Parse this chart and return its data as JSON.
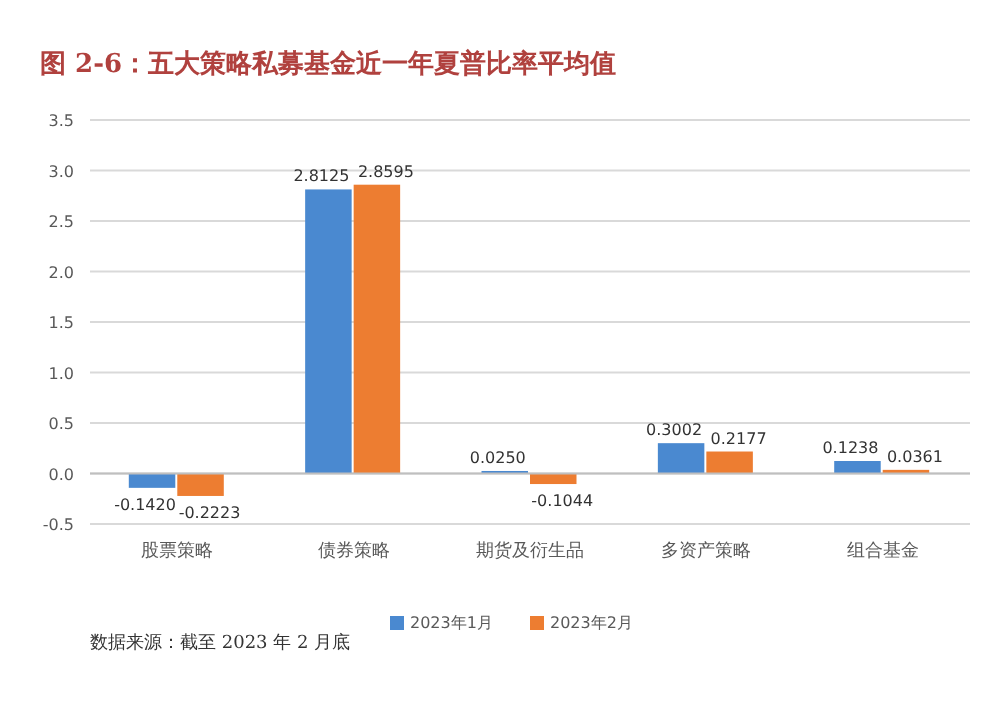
{
  "chart_data": {
    "type": "bar",
    "title": "图 2-6：五大策略私募基金近一年夏普比率平均值",
    "categories": [
      "股票策略",
      "债券策略",
      "期货及衍生品",
      "多资产策略",
      "组合基金"
    ],
    "series": [
      {
        "name": "2023年1月",
        "color": "#4a89d0",
        "values": [
          -0.142,
          2.8125,
          0.025,
          0.3002,
          0.1238
        ],
        "value_labels": [
          "-0.1420",
          "2.8125",
          "0.0250",
          "0.3002",
          "0.1238"
        ]
      },
      {
        "name": "2023年2月",
        "color": "#ed7d31",
        "values": [
          -0.2223,
          2.8595,
          -0.1044,
          0.2177,
          0.0361
        ],
        "value_labels": [
          "-0.2223",
          "2.8595",
          "-0.1044",
          "0.2177",
          "0.0361"
        ]
      }
    ],
    "ylim": [
      -0.5,
      3.5
    ],
    "yticks": [
      {
        "value": -0.5,
        "label": "-0.5"
      },
      {
        "value": 0,
        "label": "0.0"
      },
      {
        "value": 0.5,
        "label": "0.5"
      },
      {
        "value": 1,
        "label": "1.0"
      },
      {
        "value": 1.5,
        "label": "1.5"
      },
      {
        "value": 2,
        "label": "2.0"
      },
      {
        "value": 2.5,
        "label": "2.5"
      },
      {
        "value": 3,
        "label": "3.0"
      },
      {
        "value": 3.5,
        "label": "3.5"
      }
    ],
    "grid": "y",
    "legend": "bottom",
    "annotations": [
      "数据来源：截至 2023 年 2 月底"
    ]
  }
}
